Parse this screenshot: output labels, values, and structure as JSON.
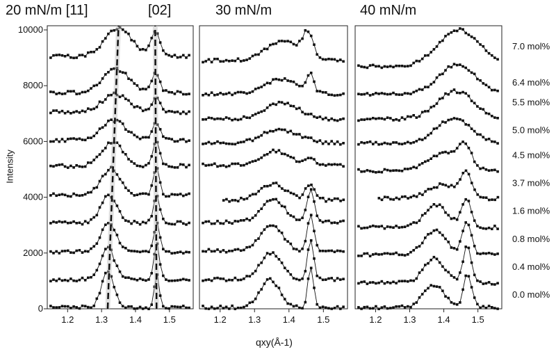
{
  "chart_data": [
    {
      "type": "line",
      "title": "20 mN/m",
      "peak_labels": [
        "[11]",
        "[02]"
      ],
      "xlabel": "qxy(Å-1)",
      "ylabel": "Intensity",
      "xlim": [
        1.14,
        1.57
      ],
      "ylim": [
        0,
        10150
      ],
      "xticks": [
        "1.2",
        "1.3",
        "1.4",
        "1.5"
      ],
      "yticks": [
        "0",
        "2000",
        "4000",
        "6000",
        "8000",
        "10000"
      ],
      "guides": [
        {
          "q_bottom": 1.318,
          "q_top": 1.35
        },
        {
          "q_bottom": 1.462,
          "q_top": 1.458
        }
      ],
      "series": [
        {
          "name": "0.0 mol%",
          "offset": 0,
          "baseline": 50,
          "peaks": [
            [
              1.318,
              1300,
              0.018
            ],
            [
              1.463,
              1150,
              0.007
            ]
          ]
        },
        {
          "name": "0.4 mol%",
          "offset": 1000,
          "baseline": 50,
          "peaks": [
            [
              1.318,
              1150,
              0.02
            ],
            [
              1.463,
              1250,
              0.008
            ]
          ]
        },
        {
          "name": "0.8 mol%",
          "offset": 2000,
          "baseline": 50,
          "peaks": [
            [
              1.32,
              1050,
              0.022
            ],
            [
              1.463,
              1100,
              0.008
            ]
          ]
        },
        {
          "name": "1.6 mol%",
          "offset": 3000,
          "baseline": 80,
          "peaks": [
            [
              1.322,
              1000,
              0.024
            ],
            [
              1.462,
              1050,
              0.009
            ]
          ]
        },
        {
          "name": "3.7 mol%",
          "offset": 4000,
          "baseline": 80,
          "peaks": [
            [
              1.328,
              950,
              0.028
            ],
            [
              1.461,
              1000,
              0.009
            ]
          ]
        },
        {
          "name": "4.5 mol%",
          "offset": 5000,
          "baseline": 120,
          "peaks": [
            [
              1.332,
              850,
              0.032
            ],
            [
              1.461,
              850,
              0.01
            ]
          ]
        },
        {
          "name": "5.0 mol%",
          "offset": 5900,
          "baseline": 150,
          "peaks": [
            [
              1.336,
              700,
              0.036
            ],
            [
              1.46,
              600,
              0.012
            ]
          ]
        },
        {
          "name": "5.5 mol%",
          "offset": 6900,
          "baseline": 150,
          "peaks": [
            [
              1.34,
              650,
              0.038
            ],
            [
              1.46,
              550,
              0.012
            ]
          ]
        },
        {
          "name": "6.4 mol%",
          "offset": 7600,
          "baseline": 150,
          "peaks": [
            [
              1.343,
              850,
              0.038
            ],
            [
              1.459,
              700,
              0.012
            ]
          ]
        },
        {
          "name": "7.0 mol%",
          "offset": 8900,
          "baseline": 150,
          "peaks": [
            [
              1.35,
              1000,
              0.04
            ],
            [
              1.458,
              900,
              0.013
            ]
          ]
        }
      ]
    },
    {
      "type": "line",
      "title": "30 mN/m",
      "xlim": [
        1.14,
        1.57
      ],
      "ylim": [
        0,
        10150
      ],
      "xticks": [
        "1.2",
        "1.3",
        "1.4",
        "1.5"
      ],
      "series": [
        {
          "name": "0.0 mol%",
          "offset": 0,
          "baseline": 50,
          "peaks": [
            [
              1.345,
              1000,
              0.028
            ],
            [
              1.463,
              1450,
              0.008
            ]
          ]
        },
        {
          "name": "0.4 mol%",
          "offset": 1000,
          "baseline": 60,
          "peaks": [
            [
              1.348,
              950,
              0.03
            ],
            [
              1.463,
              1400,
              0.009
            ]
          ]
        },
        {
          "name": "0.8 mol%",
          "offset": 2000,
          "baseline": 80,
          "peaks": [
            [
              1.35,
              900,
              0.032
            ],
            [
              1.463,
              1250,
              0.01
            ]
          ]
        },
        {
          "name": "1.6 mol%",
          "offset": 3000,
          "baseline": 100,
          "peaks": [
            [
              1.353,
              850,
              0.034
            ],
            [
              1.463,
              1150,
              0.011
            ]
          ]
        },
        {
          "name": "3.7 mol%",
          "offset": 3800,
          "baseline": 100,
          "peaks": [
            [
              1.355,
              600,
              0.036
            ],
            [
              1.462,
              600,
              0.014
            ]
          ]
        },
        {
          "name": "4.5 mol%",
          "offset": 5000,
          "baseline": 150,
          "peaks": [
            [
              1.36,
              500,
              0.04
            ],
            [
              1.46,
              250,
              0.016
            ]
          ]
        },
        {
          "name": "5.0 mol%",
          "offset": 5800,
          "baseline": 150,
          "peaks": [
            [
              1.37,
              500,
              0.045
            ],
            [
              1.455,
              100,
              0.02
            ]
          ]
        },
        {
          "name": "5.5 mol%",
          "offset": 6600,
          "baseline": 200,
          "peaks": [
            [
              1.38,
              600,
              0.05
            ]
          ]
        },
        {
          "name": "6.4 mol%",
          "offset": 7500,
          "baseline": 200,
          "peaks": [
            [
              1.38,
              550,
              0.05
            ],
            [
              1.462,
              650,
              0.009
            ]
          ]
        },
        {
          "name": "7.0 mol%",
          "offset": 8700,
          "baseline": 200,
          "peaks": [
            [
              1.385,
              700,
              0.05
            ],
            [
              1.455,
              800,
              0.015
            ]
          ]
        }
      ]
    },
    {
      "type": "line",
      "title": "40 mN/m",
      "xlim": [
        1.14,
        1.57
      ],
      "ylim": [
        0,
        10150
      ],
      "xticks": [
        "1.2",
        "1.3",
        "1.4",
        "1.5"
      ],
      "series": [
        {
          "name": "0.0 mol%",
          "offset": 0,
          "baseline": 50,
          "peaks": [
            [
              1.37,
              800,
              0.03
            ],
            [
              1.47,
              1200,
              0.012
            ]
          ]
        },
        {
          "name": "0.4 mol%",
          "offset": 850,
          "baseline": 80,
          "peaks": [
            [
              1.372,
              900,
              0.03
            ],
            [
              1.468,
              1300,
              0.012
            ]
          ]
        },
        {
          "name": "0.8 mol%",
          "offset": 1850,
          "baseline": 100,
          "peaks": [
            [
              1.374,
              850,
              0.032
            ],
            [
              1.467,
              1200,
              0.013
            ]
          ]
        },
        {
          "name": "1.6 mol%",
          "offset": 2800,
          "baseline": 120,
          "peaks": [
            [
              1.378,
              800,
              0.034
            ],
            [
              1.466,
              1000,
              0.014
            ]
          ]
        },
        {
          "name": "3.7 mol%",
          "offset": 3800,
          "baseline": 150,
          "peaks": [
            [
              1.4,
              500,
              0.045
            ],
            [
              1.465,
              800,
              0.016
            ]
          ]
        },
        {
          "name": "4.5 mol%",
          "offset": 4800,
          "baseline": 150,
          "peaks": [
            [
              1.41,
              650,
              0.05
            ],
            [
              1.463,
              600,
              0.018
            ]
          ]
        },
        {
          "name": "5.0 mol%",
          "offset": 5750,
          "baseline": 200,
          "peaks": [
            [
              1.43,
              900,
              0.05
            ]
          ]
        },
        {
          "name": "5.5 mol%",
          "offset": 6600,
          "baseline": 200,
          "peaks": [
            [
              1.435,
              1000,
              0.055
            ]
          ]
        },
        {
          "name": "6.4 mol%",
          "offset": 7500,
          "baseline": 200,
          "peaks": [
            [
              1.44,
              1050,
              0.055
            ]
          ]
        },
        {
          "name": "7.0 mol%",
          "offset": 8500,
          "baseline": 200,
          "peaks": [
            [
              1.445,
              1300,
              0.06
            ]
          ]
        }
      ]
    }
  ]
}
